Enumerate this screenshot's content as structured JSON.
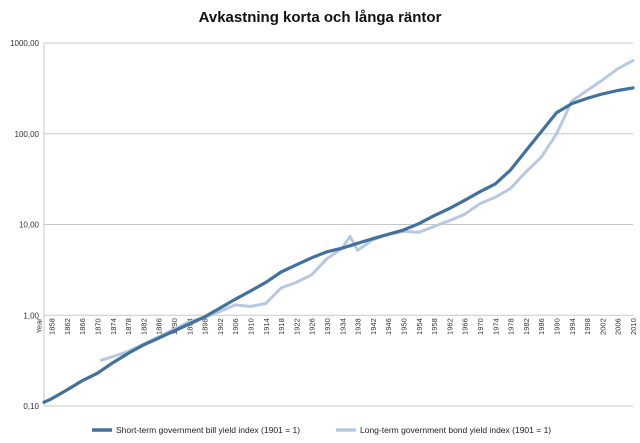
{
  "chart_data": {
    "type": "line",
    "title": "Avkastning korta och långa räntor",
    "y_scale": "log",
    "ylim": [
      0.1,
      1000
    ],
    "y_ticks": [
      "0,10",
      "1,00",
      "10,00",
      "100,00",
      "1000,00"
    ],
    "x_range": [
      1856,
      2010
    ],
    "x_ticks": [
      "Year",
      "1858",
      "1862",
      "1866",
      "1870",
      "1874",
      "1878",
      "1882",
      "1886",
      "1890",
      "1894",
      "1898",
      "1902",
      "1906",
      "1910",
      "1914",
      "1918",
      "1922",
      "1926",
      "1930",
      "1934",
      "1938",
      "1942",
      "1946",
      "1950",
      "1954",
      "1958",
      "1962",
      "1966",
      "1970",
      "1974",
      "1978",
      "1982",
      "1986",
      "1990",
      "1994",
      "1998",
      "2002",
      "2006",
      "2010"
    ],
    "grid": true,
    "legend_position": "bottom",
    "series": [
      {
        "name": "Short-term government bill yield index (1901 = 1)",
        "color": "#41719c",
        "x": [
          1856,
          1858,
          1862,
          1866,
          1870,
          1874,
          1878,
          1882,
          1886,
          1890,
          1894,
          1898,
          1902,
          1906,
          1910,
          1914,
          1918,
          1922,
          1926,
          1930,
          1934,
          1938,
          1942,
          1946,
          1950,
          1954,
          1958,
          1962,
          1966,
          1970,
          1974,
          1978,
          1982,
          1986,
          1990,
          1994,
          1998,
          2002,
          2006,
          2010
        ],
        "values": [
          0.11,
          0.12,
          0.15,
          0.19,
          0.23,
          0.3,
          0.38,
          0.47,
          0.56,
          0.67,
          0.8,
          0.96,
          1.2,
          1.5,
          1.85,
          2.3,
          3.0,
          3.6,
          4.3,
          5.0,
          5.5,
          6.2,
          7.0,
          7.8,
          8.7,
          10.2,
          12.5,
          15.0,
          18.5,
          23.0,
          28.0,
          40.0,
          65.0,
          105.0,
          170.0,
          215.0,
          245.0,
          275.0,
          300.0,
          320.0
        ]
      },
      {
        "name": "Long-term government bond yield index (1901 = 1)",
        "color": "#b8c8de",
        "x": [
          1871,
          1874,
          1878,
          1882,
          1886,
          1890,
          1894,
          1898,
          1902,
          1906,
          1910,
          1914,
          1918,
          1922,
          1926,
          1930,
          1934,
          1936,
          1938,
          1942,
          1946,
          1950,
          1954,
          1958,
          1962,
          1966,
          1970,
          1974,
          1978,
          1982,
          1986,
          1990,
          1992,
          1994,
          1998,
          2002,
          2006,
          2010
        ],
        "values": [
          0.32,
          0.35,
          0.4,
          0.48,
          0.58,
          0.7,
          0.85,
          0.95,
          1.1,
          1.3,
          1.25,
          1.35,
          2.0,
          2.3,
          2.8,
          4.2,
          5.5,
          7.4,
          5.2,
          6.8,
          7.8,
          8.4,
          8.2,
          9.5,
          11.0,
          13.0,
          17.0,
          20.0,
          25.0,
          38.0,
          55.0,
          100.0,
          150.0,
          230.0,
          300.0,
          390.0,
          520.0,
          640.0
        ]
      }
    ]
  }
}
